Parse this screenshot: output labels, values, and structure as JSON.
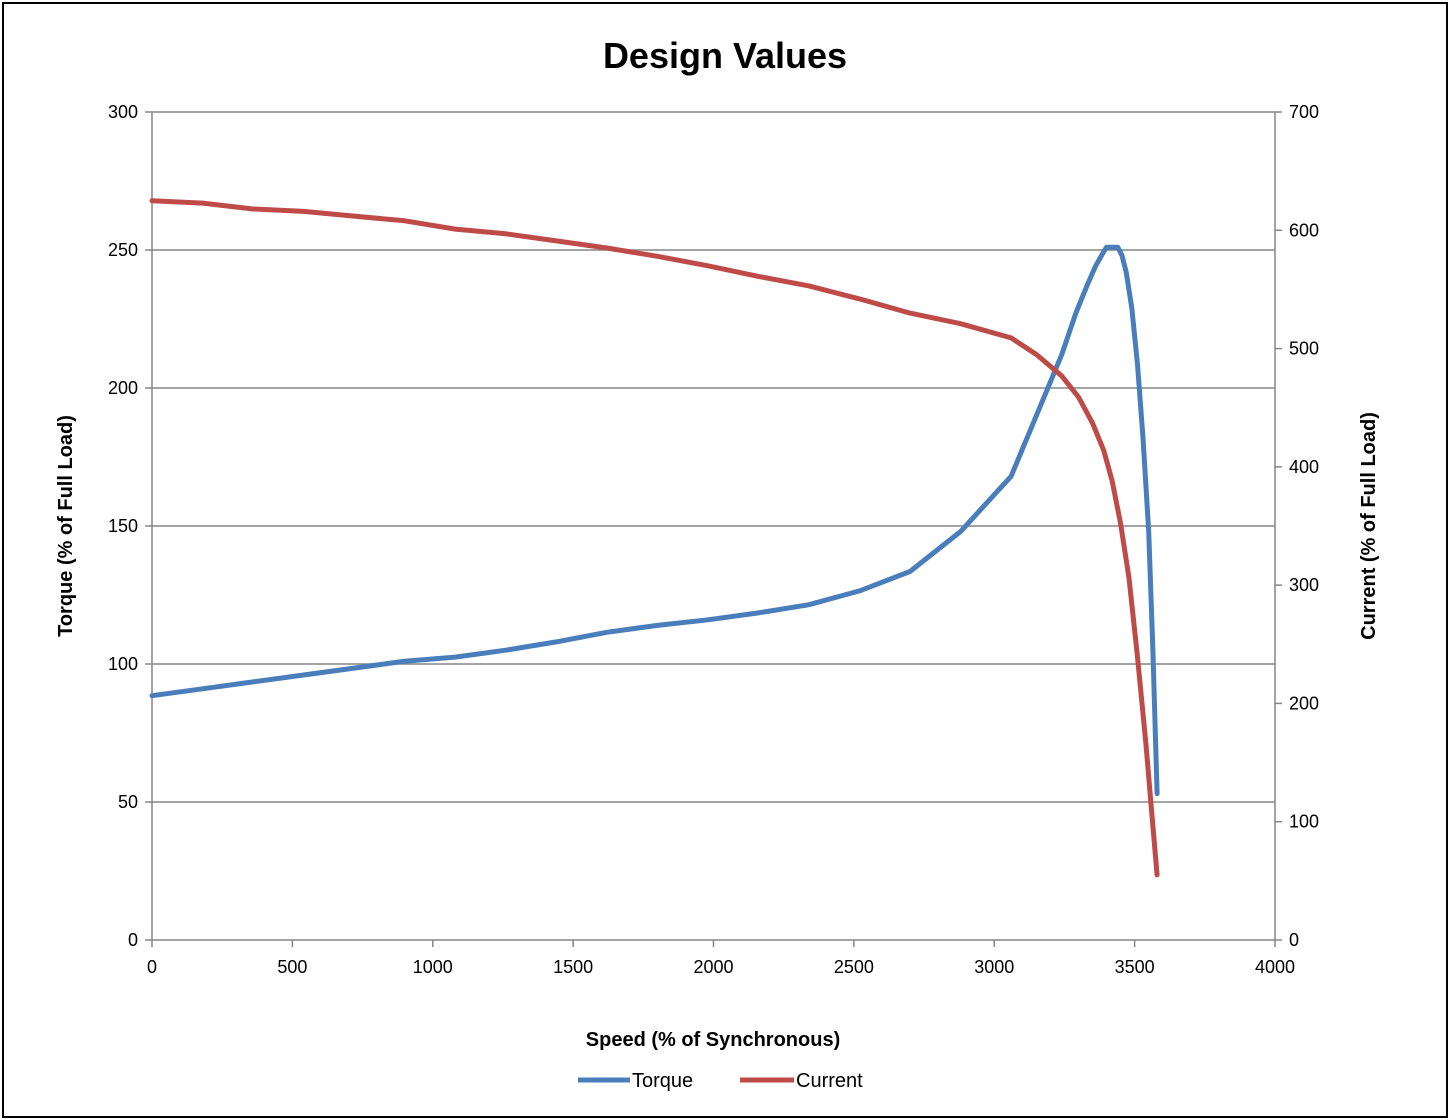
{
  "chart_data": {
    "type": "line",
    "title": "Design Values",
    "xlabel": "Speed (% of Synchronous)",
    "ylabel": "Torque (% of Full Load)",
    "y2label": "Current (% of Full Load)",
    "xlim": [
      0,
      4000
    ],
    "ylim": [
      0,
      300
    ],
    "y2lim": [
      0,
      700
    ],
    "x_ticks": [
      0,
      500,
      1000,
      1500,
      2000,
      2500,
      3000,
      3500,
      4000
    ],
    "y_ticks": [
      0,
      50,
      100,
      150,
      200,
      250,
      300
    ],
    "y2_ticks": [
      0,
      100,
      200,
      300,
      400,
      500,
      600,
      700
    ],
    "grid": "horizontal",
    "legend_position": "bottom",
    "series": [
      {
        "name": "Torque",
        "axis": "left",
        "color": "#4a7ebb",
        "x": [
          0,
          180,
          360,
          540,
          720,
          900,
          1080,
          1260,
          1440,
          1620,
          1800,
          1980,
          2160,
          2340,
          2520,
          2700,
          2880,
          3060,
          3150,
          3240,
          3290,
          3330,
          3360,
          3385,
          3400,
          3415,
          3440,
          3455,
          3470,
          3490,
          3510,
          3530,
          3550,
          3565,
          3580
        ],
        "values": [
          88.5,
          91,
          93.5,
          96,
          98.5,
          101,
          102.5,
          105,
          108,
          111.5,
          114,
          116,
          118.5,
          121.5,
          126.5,
          133.5,
          148,
          168,
          190,
          212,
          227,
          237,
          244,
          248.5,
          251,
          251,
          251,
          248,
          242,
          229,
          209,
          182,
          148,
          105,
          53
        ]
      },
      {
        "name": "Current",
        "axis": "right",
        "color": "#be4b48",
        "x": [
          0,
          180,
          360,
          540,
          720,
          900,
          1080,
          1260,
          1440,
          1620,
          1800,
          1980,
          2160,
          2340,
          2520,
          2700,
          2880,
          3060,
          3150,
          3240,
          3300,
          3350,
          3390,
          3420,
          3450,
          3480,
          3510,
          3540,
          3560,
          3580
        ],
        "values": [
          625,
          623,
          618,
          616,
          612,
          608,
          601,
          597,
          591,
          585,
          578,
          570,
          561,
          553,
          542,
          530,
          521,
          509,
          495,
          477,
          459,
          437,
          414,
          388,
          352,
          306,
          240,
          166,
          110,
          55
        ]
      }
    ]
  }
}
